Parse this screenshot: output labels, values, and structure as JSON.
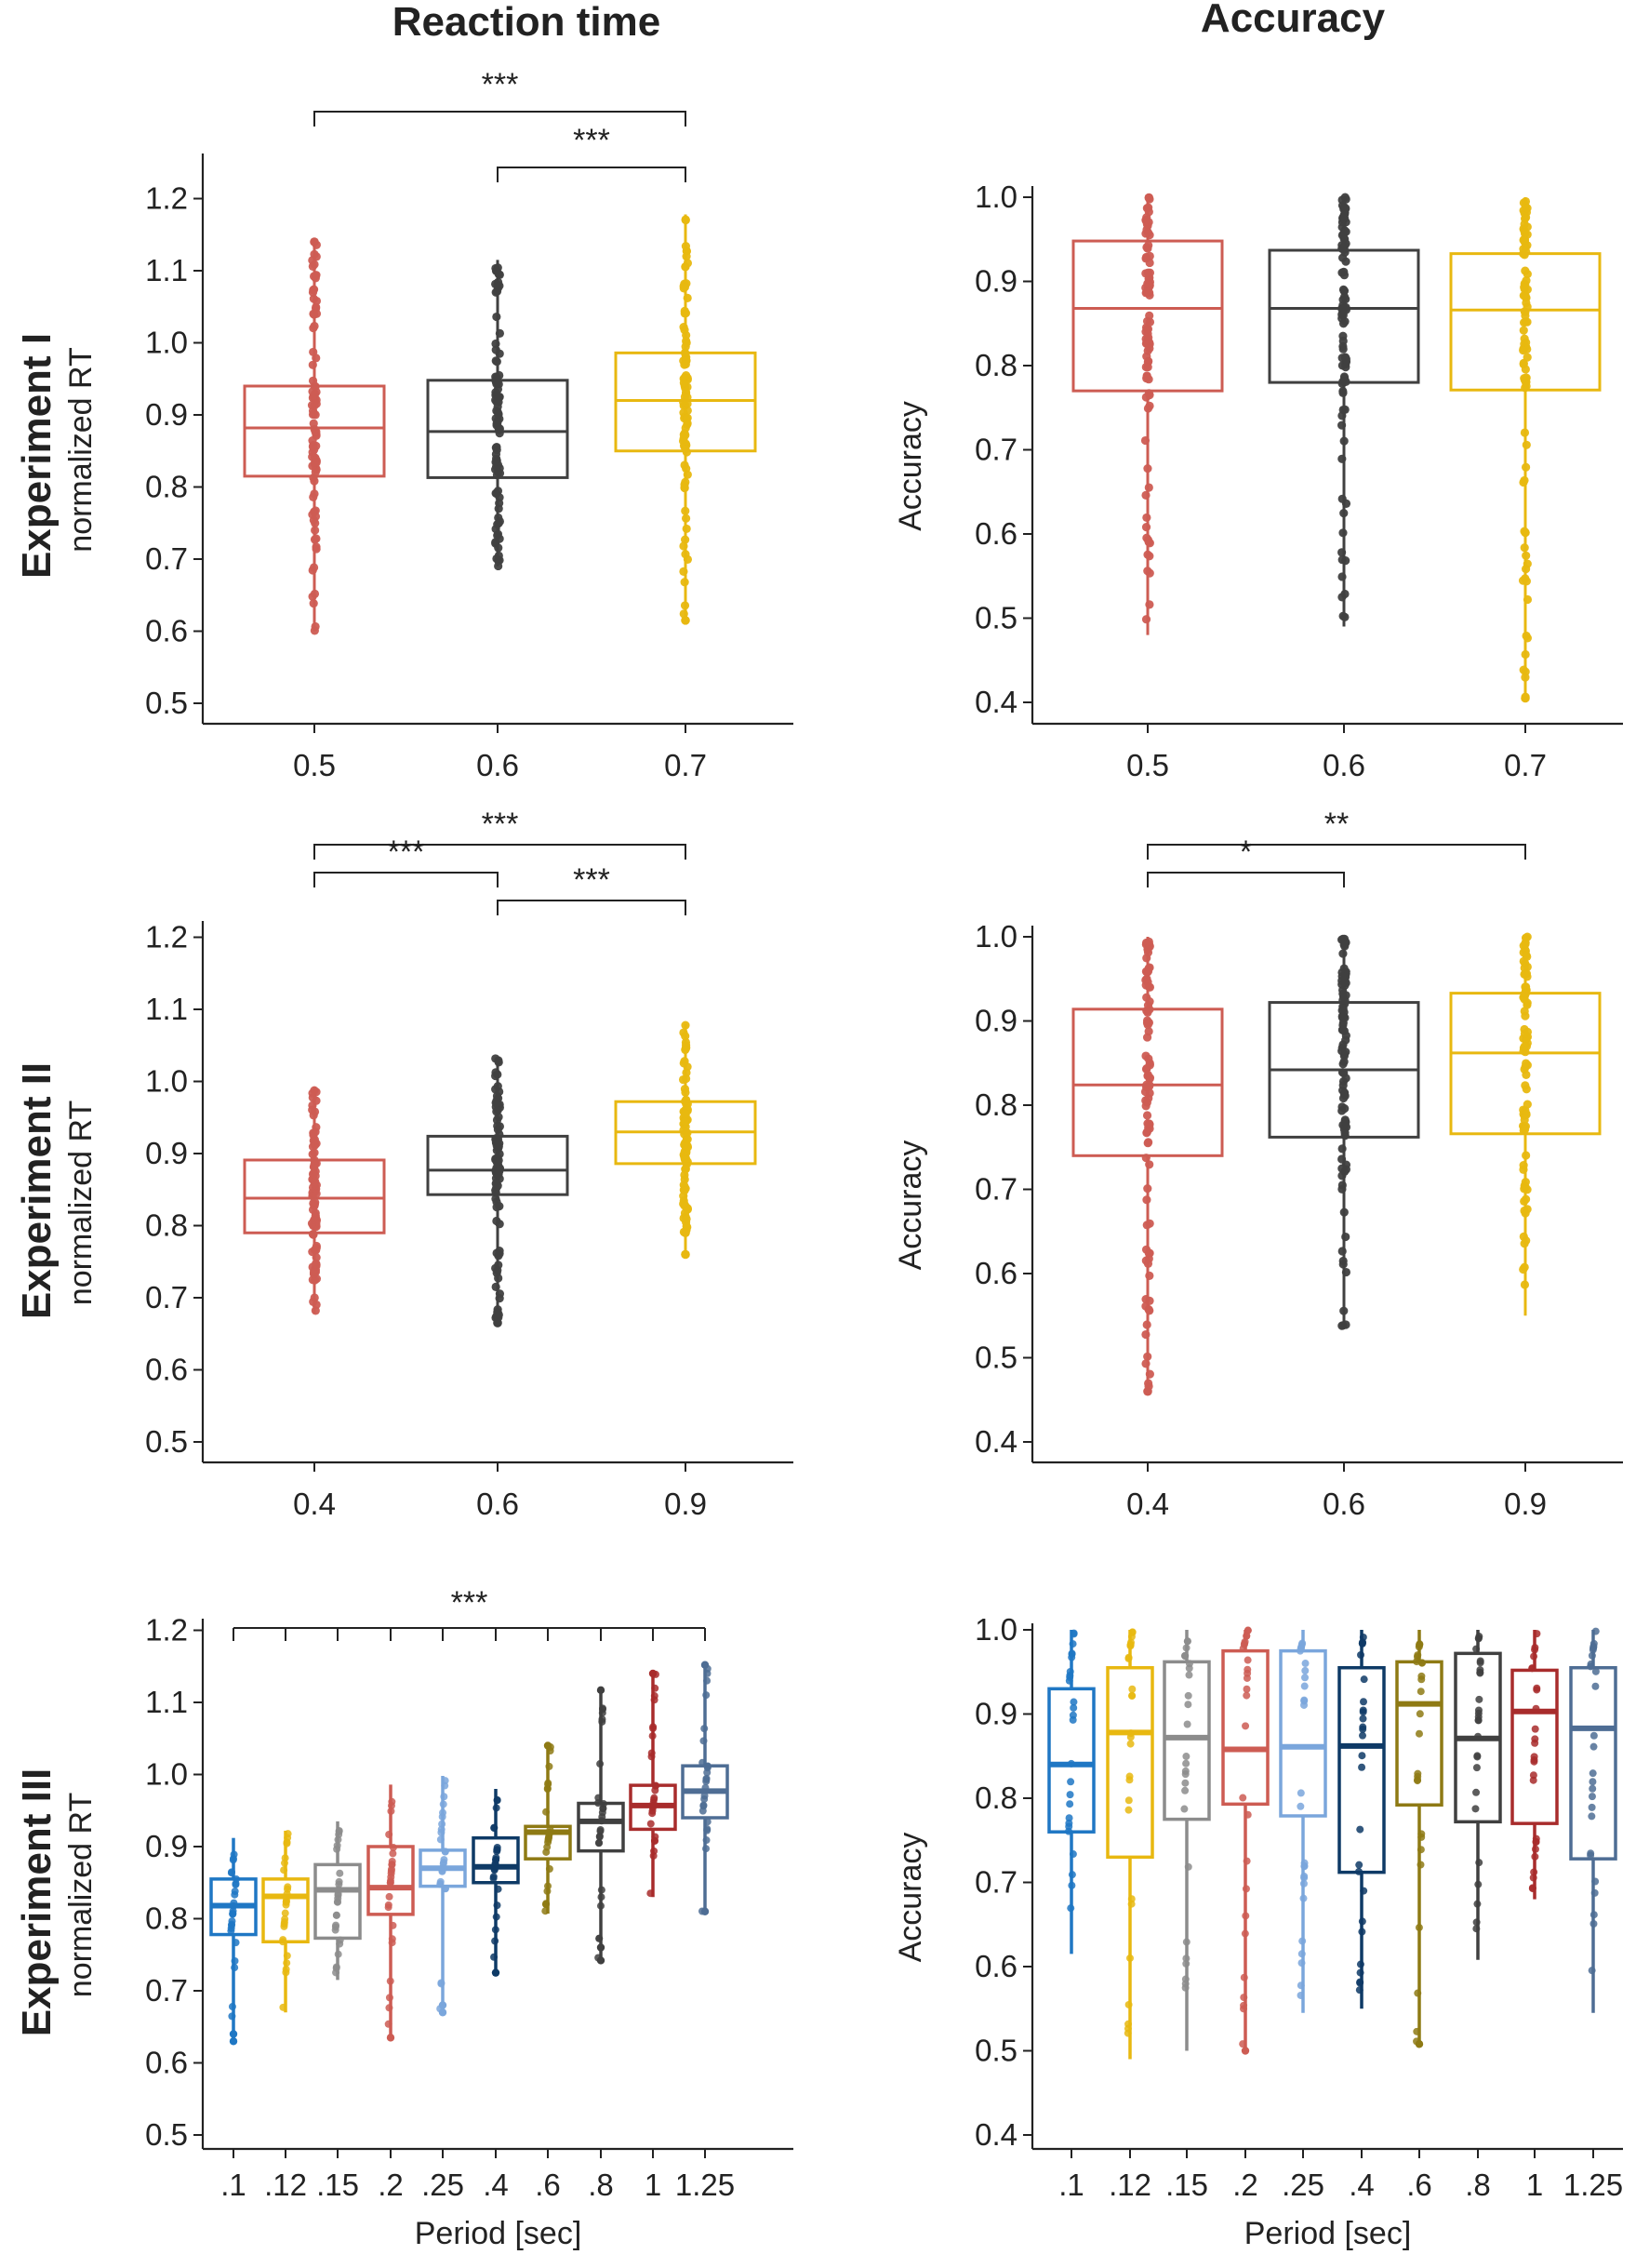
{
  "column_titles": {
    "left": "Reaction time",
    "right": "Accuracy"
  },
  "row_titles": [
    "Experiment I",
    "Experiment II",
    "Experiment III"
  ],
  "chart_data": [
    {
      "id": "exp1-rt",
      "type": "box",
      "row": 0,
      "col": 0,
      "ylabel": "normalized RT",
      "xlabel": "",
      "ylim": [
        0.5,
        1.22
      ],
      "yticks": [
        "0.5",
        "0.6",
        "0.7",
        "0.8",
        "0.9",
        "1.0",
        "1.1",
        "1.2"
      ],
      "categories": [
        "0.5",
        "0.6",
        "0.7"
      ],
      "colors": [
        "#cd5c53",
        "#404040",
        "#e8b810"
      ],
      "boxes": [
        {
          "q1": 0.815,
          "median": 0.882,
          "q3": 0.94,
          "min": 0.6,
          "max": 1.14,
          "outliers": [
            1.14
          ]
        },
        {
          "q1": 0.813,
          "median": 0.877,
          "q3": 0.948,
          "min": 0.69,
          "max": 1.115,
          "outliers": []
        },
        {
          "q1": 0.85,
          "median": 0.92,
          "q3": 0.986,
          "min": 0.615,
          "max": 1.178,
          "outliers": [
            0.615
          ]
        }
      ],
      "significance": [
        {
          "from": 0,
          "to": 2,
          "label": "***"
        },
        {
          "from": 1,
          "to": 2,
          "label": "***"
        }
      ]
    },
    {
      "id": "exp1-acc",
      "type": "box",
      "row": 0,
      "col": 1,
      "ylabel": "Accuracy",
      "xlabel": "",
      "ylim": [
        0.38,
        1.04
      ],
      "yticks": [
        "0.4",
        "0.5",
        "0.6",
        "0.7",
        "0.8",
        "0.9",
        "1.0"
      ],
      "categories": [
        "0.5",
        "0.6",
        "0.7"
      ],
      "colors": [
        "#cd5c53",
        "#404040",
        "#e8b810"
      ],
      "boxes": [
        {
          "q1": 0.77,
          "median": 0.868,
          "q3": 0.948,
          "min": 0.48,
          "max": 1.0,
          "outliers": []
        },
        {
          "q1": 0.78,
          "median": 0.868,
          "q3": 0.937,
          "min": 0.49,
          "max": 1.0,
          "outliers": []
        },
        {
          "q1": 0.771,
          "median": 0.866,
          "q3": 0.933,
          "min": 0.405,
          "max": 1.0,
          "outliers": [
            0.405
          ]
        }
      ],
      "significance": []
    },
    {
      "id": "exp2-rt",
      "type": "box",
      "row": 1,
      "col": 0,
      "ylabel": "normalized RT",
      "xlabel": "",
      "ylim": [
        0.5,
        1.22
      ],
      "yticks": [
        "0.5",
        "0.6",
        "0.7",
        "0.8",
        "0.9",
        "1.0",
        "1.1",
        "1.2"
      ],
      "categories": [
        "0.4",
        "0.6",
        "0.9"
      ],
      "colors": [
        "#cd5c53",
        "#404040",
        "#e8b810"
      ],
      "boxes": [
        {
          "q1": 0.79,
          "median": 0.838,
          "q3": 0.891,
          "min": 0.678,
          "max": 0.993,
          "outliers": []
        },
        {
          "q1": 0.843,
          "median": 0.877,
          "q3": 0.924,
          "min": 0.665,
          "max": 1.034,
          "outliers": [
            0.665,
            0.68
          ]
        },
        {
          "q1": 0.886,
          "median": 0.93,
          "q3": 0.972,
          "min": 0.76,
          "max": 1.08,
          "outliers": [
            0.76,
            0.79
          ]
        }
      ],
      "significance": [
        {
          "from": 0,
          "to": 2,
          "label": "***"
        },
        {
          "from": 0,
          "to": 1,
          "label": "***"
        },
        {
          "from": 1,
          "to": 2,
          "label": "***"
        }
      ]
    },
    {
      "id": "exp2-acc",
      "type": "box",
      "row": 1,
      "col": 1,
      "ylabel": "Accuracy",
      "xlabel": "",
      "ylim": [
        0.38,
        1.04
      ],
      "yticks": [
        "0.4",
        "0.5",
        "0.6",
        "0.7",
        "0.8",
        "0.9",
        "1.0"
      ],
      "categories": [
        "0.4",
        "0.6",
        "0.9"
      ],
      "colors": [
        "#cd5c53",
        "#404040",
        "#e8b810"
      ],
      "boxes": [
        {
          "q1": 0.74,
          "median": 0.824,
          "q3": 0.914,
          "min": 0.46,
          "max": 1.0,
          "outliers": [
            0.46
          ]
        },
        {
          "q1": 0.762,
          "median": 0.842,
          "q3": 0.922,
          "min": 0.535,
          "max": 1.0,
          "outliers": []
        },
        {
          "q1": 0.766,
          "median": 0.862,
          "q3": 0.933,
          "min": 0.55,
          "max": 1.0,
          "outliers": []
        }
      ],
      "significance": [
        {
          "from": 0,
          "to": 2,
          "label": "**"
        },
        {
          "from": 0,
          "to": 1,
          "label": "*"
        }
      ]
    },
    {
      "id": "exp3-rt",
      "type": "box",
      "row": 2,
      "col": 0,
      "ylabel": "normalized RT",
      "xlabel": "Period [sec]",
      "ylim": [
        0.5,
        1.22
      ],
      "yticks": [
        "0.5",
        "0.6",
        "0.7",
        "0.8",
        "0.9",
        "1.0",
        "1.1",
        "1.2"
      ],
      "categories": [
        ".1",
        ".12",
        ".15",
        ".2",
        ".25",
        ".4",
        ".6",
        ".8",
        "1",
        "1.25"
      ],
      "colors": [
        "#1f77c4",
        "#e8b810",
        "#8c8c8c",
        "#cd5c53",
        "#7aa6dc",
        "#0e3a66",
        "#8e7a14",
        "#404040",
        "#a82c2c",
        "#4e6d94"
      ],
      "boxes": [
        {
          "q1": 0.778,
          "median": 0.818,
          "q3": 0.855,
          "min": 0.63,
          "max": 0.912,
          "outliers": [
            0.63,
            0.64
          ]
        },
        {
          "q1": 0.768,
          "median": 0.831,
          "q3": 0.855,
          "min": 0.67,
          "max": 0.922,
          "outliers": []
        },
        {
          "q1": 0.773,
          "median": 0.84,
          "q3": 0.875,
          "min": 0.715,
          "max": 0.935,
          "outliers": []
        },
        {
          "q1": 0.806,
          "median": 0.843,
          "q3": 0.9,
          "min": 0.635,
          "max": 0.986,
          "outliers": [
            0.635
          ]
        },
        {
          "q1": 0.845,
          "median": 0.87,
          "q3": 0.895,
          "min": 0.67,
          "max": 0.998,
          "outliers": [
            0.67,
            0.68
          ]
        },
        {
          "q1": 0.85,
          "median": 0.872,
          "q3": 0.912,
          "min": 0.725,
          "max": 0.98,
          "outliers": [
            0.725
          ]
        },
        {
          "q1": 0.883,
          "median": 0.92,
          "q3": 0.928,
          "min": 0.807,
          "max": 1.04,
          "outliers": [
            1.04
          ]
        },
        {
          "q1": 0.894,
          "median": 0.935,
          "q3": 0.96,
          "min": 0.742,
          "max": 1.117,
          "outliers": [
            0.742,
            0.76,
            1.117
          ]
        },
        {
          "q1": 0.924,
          "median": 0.957,
          "q3": 0.985,
          "min": 0.83,
          "max": 1.14,
          "outliers": [
            1.14
          ]
        },
        {
          "q1": 0.94,
          "median": 0.977,
          "q3": 1.012,
          "min": 0.81,
          "max": 1.152,
          "outliers": [
            0.81,
            1.152
          ]
        }
      ],
      "significance": [
        {
          "from": 0,
          "to": 9,
          "label": "***",
          "style": "comb"
        }
      ]
    },
    {
      "id": "exp3-acc",
      "type": "box",
      "row": 2,
      "col": 1,
      "ylabel": "Accuracy",
      "xlabel": "Period [sec]",
      "ylim": [
        0.38,
        1.04
      ],
      "yticks": [
        "0.4",
        "0.5",
        "0.6",
        "0.7",
        "0.8",
        "0.9",
        "1.0"
      ],
      "categories": [
        ".1",
        ".12",
        ".15",
        ".2",
        ".25",
        ".4",
        ".6",
        ".8",
        "1",
        "1.25"
      ],
      "colors": [
        "#1f77c4",
        "#e8b810",
        "#8c8c8c",
        "#cd5c53",
        "#7aa6dc",
        "#0e3a66",
        "#8e7a14",
        "#404040",
        "#a82c2c",
        "#4e6d94"
      ],
      "boxes": [
        {
          "q1": 0.76,
          "median": 0.84,
          "q3": 0.93,
          "min": 0.615,
          "max": 1.0,
          "outliers": []
        },
        {
          "q1": 0.73,
          "median": 0.878,
          "q3": 0.955,
          "min": 0.49,
          "max": 1.0,
          "outliers": []
        },
        {
          "q1": 0.775,
          "median": 0.872,
          "q3": 0.962,
          "min": 0.5,
          "max": 1.0,
          "outliers": []
        },
        {
          "q1": 0.793,
          "median": 0.858,
          "q3": 0.975,
          "min": 0.5,
          "max": 1.0,
          "outliers": [
            0.5
          ]
        },
        {
          "q1": 0.779,
          "median": 0.861,
          "q3": 0.975,
          "min": 0.545,
          "max": 1.0,
          "outliers": []
        },
        {
          "q1": 0.712,
          "median": 0.862,
          "q3": 0.955,
          "min": 0.55,
          "max": 1.0,
          "outliers": []
        },
        {
          "q1": 0.792,
          "median": 0.912,
          "q3": 0.962,
          "min": 0.508,
          "max": 1.0,
          "outliers": [
            0.508
          ]
        },
        {
          "q1": 0.772,
          "median": 0.871,
          "q3": 0.972,
          "min": 0.608,
          "max": 1.0,
          "outliers": []
        },
        {
          "q1": 0.77,
          "median": 0.903,
          "q3": 0.952,
          "min": 0.68,
          "max": 1.0,
          "outliers": []
        },
        {
          "q1": 0.728,
          "median": 0.883,
          "q3": 0.955,
          "min": 0.545,
          "max": 1.0,
          "outliers": []
        }
      ],
      "significance": []
    }
  ]
}
